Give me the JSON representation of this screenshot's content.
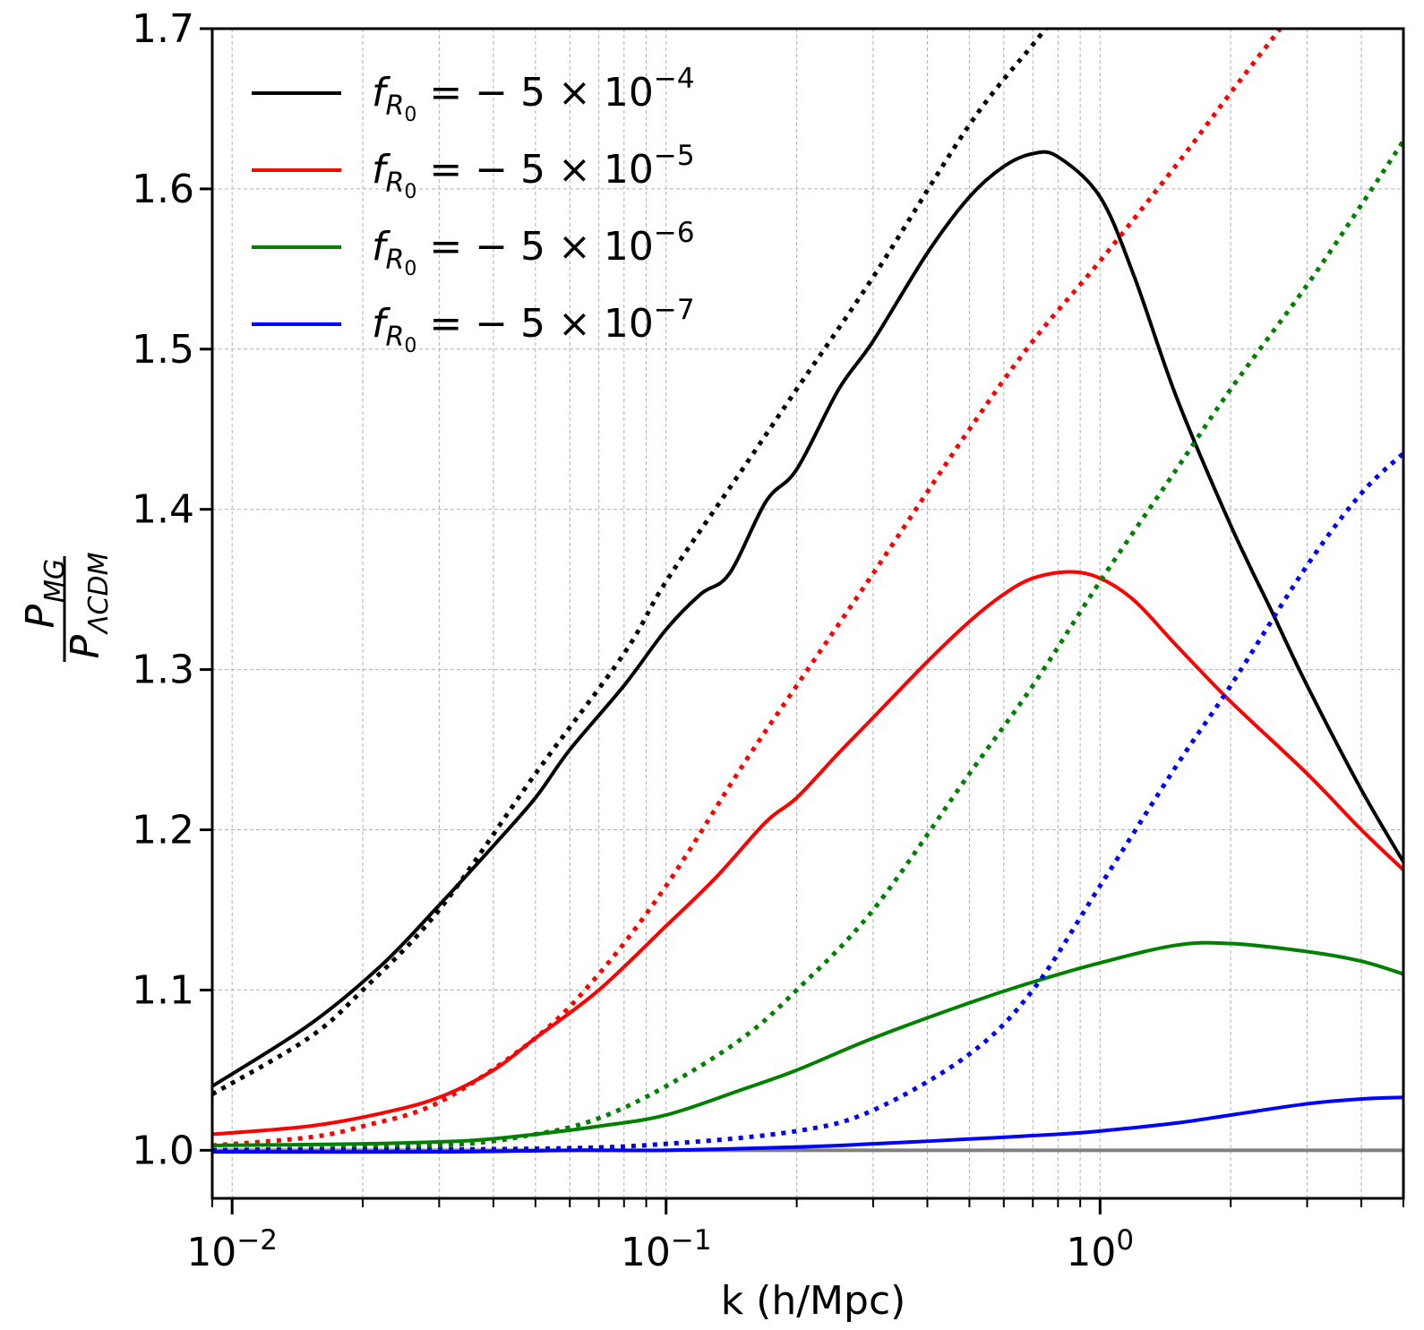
{
  "chart_data": {
    "type": "line",
    "title": "",
    "xlabel": "k (h/Mpc)",
    "ylabel": {
      "numerator": "P",
      "numerator_sub": "MG",
      "denominator": "P",
      "denominator_sub": "ΛCDM"
    },
    "xscale": "log",
    "xlim": [
      0.009,
      5.0
    ],
    "ylim": [
      0.97,
      1.7
    ],
    "grid": true,
    "legend_position": "top-left",
    "x_ticks": [
      {
        "value": 0.01,
        "base": "10",
        "exp": "−2"
      },
      {
        "value": 0.1,
        "base": "10",
        "exp": "−1"
      },
      {
        "value": 1,
        "base": "10",
        "exp": "0"
      }
    ],
    "y_ticks": [
      {
        "value": 1.0,
        "label": "1.0"
      },
      {
        "value": 1.1,
        "label": "1.1"
      },
      {
        "value": 1.2,
        "label": "1.2"
      },
      {
        "value": 1.3,
        "label": "1.3"
      },
      {
        "value": 1.4,
        "label": "1.4"
      },
      {
        "value": 1.5,
        "label": "1.5"
      },
      {
        "value": 1.6,
        "label": "1.6"
      },
      {
        "value": 1.7,
        "label": "1.7"
      }
    ],
    "legend": [
      {
        "f": "f",
        "sub": "R",
        "subsub": "0",
        "text": " = − 5 × 10",
        "exp": "−4",
        "color": "#000000"
      },
      {
        "f": "f",
        "sub": "R",
        "subsub": "0",
        "text": " = − 5 × 10",
        "exp": "−5",
        "color": "#ff0000"
      },
      {
        "f": "f",
        "sub": "R",
        "subsub": "0",
        "text": " = − 5 × 10",
        "exp": "−6",
        "color": "#008000"
      },
      {
        "f": "f",
        "sub": "R",
        "subsub": "0",
        "text": " = − 5 × 10",
        "exp": "−7",
        "color": "#0000ff"
      }
    ],
    "reference_line": {
      "y": 1.0,
      "color": "#808080"
    },
    "series": [
      {
        "name": "fR0 = -5e-4 nonlinear",
        "style": "solid",
        "color": "#000000",
        "x": [
          0.009,
          0.015,
          0.022,
          0.03,
          0.04,
          0.05,
          0.06,
          0.08,
          0.1,
          0.12,
          0.14,
          0.17,
          0.2,
          0.25,
          0.3,
          0.4,
          0.5,
          0.6,
          0.7,
          0.8,
          1.0,
          1.2,
          1.5,
          2.0,
          2.5,
          3.0,
          4.0,
          5.0
        ],
        "y": [
          1.04,
          1.078,
          1.115,
          1.153,
          1.19,
          1.22,
          1.25,
          1.29,
          1.325,
          1.347,
          1.36,
          1.405,
          1.425,
          1.475,
          1.505,
          1.56,
          1.595,
          1.614,
          1.622,
          1.62,
          1.595,
          1.545,
          1.47,
          1.39,
          1.335,
          1.29,
          1.225,
          1.18
        ]
      },
      {
        "name": "fR0 = -5e-4 linear",
        "style": "dotted",
        "color": "#000000",
        "x": [
          0.009,
          0.015,
          0.02,
          0.03,
          0.05,
          0.08,
          0.1,
          0.15,
          0.2,
          0.3,
          0.5,
          0.7,
          0.75
        ],
        "y": [
          1.035,
          1.07,
          1.1,
          1.15,
          1.235,
          1.31,
          1.355,
          1.425,
          1.475,
          1.545,
          1.64,
          1.69,
          1.7
        ]
      },
      {
        "name": "fR0 = -5e-5 nonlinear",
        "style": "solid",
        "color": "#ff0000",
        "x": [
          0.009,
          0.015,
          0.022,
          0.03,
          0.04,
          0.05,
          0.07,
          0.1,
          0.13,
          0.17,
          0.2,
          0.25,
          0.3,
          0.4,
          0.5,
          0.6,
          0.7,
          0.85,
          1.0,
          1.2,
          1.5,
          2.0,
          3.0,
          4.0,
          5.0
        ],
        "y": [
          1.01,
          1.015,
          1.023,
          1.033,
          1.05,
          1.07,
          1.1,
          1.14,
          1.17,
          1.205,
          1.22,
          1.248,
          1.27,
          1.305,
          1.33,
          1.347,
          1.357,
          1.361,
          1.357,
          1.343,
          1.315,
          1.28,
          1.235,
          1.2,
          1.175
        ]
      },
      {
        "name": "fR0 = -5e-5 linear",
        "style": "dotted",
        "color": "#ff0000",
        "x": [
          0.009,
          0.015,
          0.02,
          0.03,
          0.05,
          0.07,
          0.1,
          0.15,
          0.2,
          0.3,
          0.5,
          0.7,
          1.0,
          1.5,
          2.0,
          2.6
        ],
        "y": [
          1.003,
          1.008,
          1.015,
          1.03,
          1.07,
          1.11,
          1.165,
          1.24,
          1.29,
          1.36,
          1.45,
          1.505,
          1.555,
          1.615,
          1.66,
          1.7
        ]
      },
      {
        "name": "fR0 = -5e-6 nonlinear",
        "style": "solid",
        "color": "#008000",
        "x": [
          0.009,
          0.02,
          0.035,
          0.05,
          0.07,
          0.1,
          0.15,
          0.2,
          0.3,
          0.5,
          0.7,
          1.0,
          1.5,
          2.0,
          3.0,
          4.0,
          5.0
        ],
        "y": [
          1.003,
          1.004,
          1.006,
          1.01,
          1.015,
          1.022,
          1.038,
          1.05,
          1.07,
          1.092,
          1.105,
          1.117,
          1.128,
          1.129,
          1.124,
          1.118,
          1.11
        ]
      },
      {
        "name": "fR0 = -5e-6 linear",
        "style": "dotted",
        "color": "#008000",
        "x": [
          0.009,
          0.03,
          0.05,
          0.07,
          0.1,
          0.15,
          0.2,
          0.3,
          0.5,
          0.7,
          1.0,
          1.5,
          2.0,
          3.0,
          4.0,
          5.0
        ],
        "y": [
          1.0,
          1.003,
          1.01,
          1.02,
          1.04,
          1.07,
          1.1,
          1.15,
          1.235,
          1.29,
          1.355,
          1.425,
          1.475,
          1.54,
          1.59,
          1.63
        ]
      },
      {
        "name": "fR0 = -5e-7 nonlinear",
        "style": "solid",
        "color": "#0000ff",
        "x": [
          0.009,
          0.03,
          0.06,
          0.1,
          0.2,
          0.3,
          0.5,
          0.8,
          1.0,
          1.5,
          2.0,
          3.0,
          4.0,
          5.0
        ],
        "y": [
          0.999,
          0.999,
          1.0,
          1.0,
          1.002,
          1.004,
          1.007,
          1.01,
          1.012,
          1.017,
          1.022,
          1.029,
          1.032,
          1.033
        ]
      },
      {
        "name": "fR0 = -5e-7 linear",
        "style": "dotted",
        "color": "#0000ff",
        "x": [
          0.009,
          0.05,
          0.1,
          0.2,
          0.3,
          0.5,
          0.7,
          1.0,
          1.5,
          2.0,
          3.0,
          4.0,
          5.0
        ],
        "y": [
          1.0,
          1.001,
          1.004,
          1.012,
          1.025,
          1.06,
          1.1,
          1.165,
          1.24,
          1.29,
          1.365,
          1.41,
          1.435
        ]
      }
    ]
  }
}
